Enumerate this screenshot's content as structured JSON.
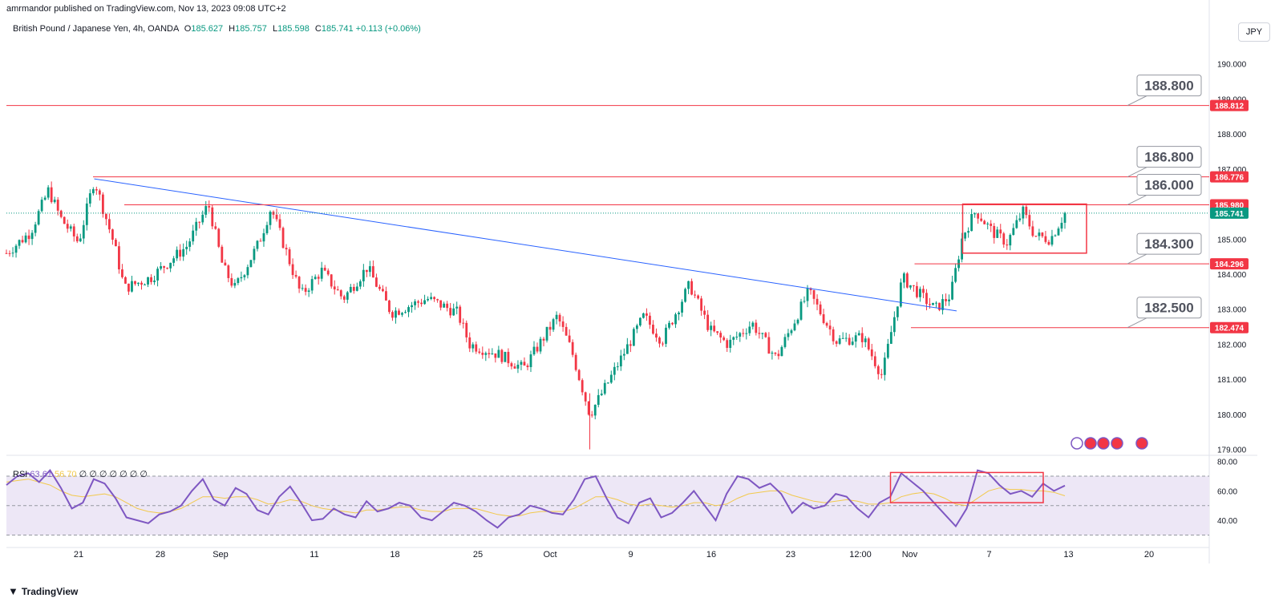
{
  "header": {
    "published_by": "amrmandor published on TradingView.com, Nov 13, 2023 09:08 UTC+2"
  },
  "legend": {
    "symbol": "British Pound / Japanese Yen, 4h, OANDA",
    "o_label": "O",
    "o": "185.627",
    "h_label": "H",
    "h": "185.757",
    "l_label": "L",
    "l": "185.598",
    "c_label": "C",
    "c": "185.741",
    "change": "+0.113 (+0.06%)"
  },
  "currency_button": "JPY",
  "footer": {
    "brand": "TradingView"
  },
  "rsi_legend": {
    "name": "RSI",
    "rsi": "63.61",
    "ma": "56.70",
    "placeholders": "∅ ∅ ∅ ∅ ∅ ∅ ∅"
  },
  "colors": {
    "up": "#089981",
    "down": "#f23645",
    "trend": "#2962ff",
    "level": "#f23645",
    "rsi": "#7e57c2",
    "rsi_ma": "#f2c94c",
    "rsi_band": "#ede7f6",
    "price_line": "#089981"
  },
  "chart_data": [
    {
      "type": "candlestick",
      "title": "British Pound / Japanese Yen, 4h, OANDA",
      "ylim": [
        178.9,
        190.45
      ],
      "y_ticks": [
        "190.000",
        "189.000",
        "188.000",
        "187.000",
        "186.000",
        "185.000",
        "184.000",
        "183.000",
        "182.000",
        "181.000",
        "180.000",
        "179.000"
      ],
      "x_ticks": [
        "21",
        "28",
        "Sep",
        "11",
        "18",
        "25",
        "Oct",
        "9",
        "16",
        "23",
        "12:00",
        "Nov",
        "7",
        "13",
        "20"
      ],
      "x_tick_pos": [
        0.06,
        0.128,
        0.178,
        0.256,
        0.323,
        0.392,
        0.452,
        0.519,
        0.586,
        0.652,
        0.71,
        0.751,
        0.817,
        0.883,
        0.95
      ],
      "key_points": [
        {
          "t": 0.0,
          "p": 184.6
        },
        {
          "t": 0.02,
          "p": 185.2
        },
        {
          "t": 0.035,
          "p": 186.4
        },
        {
          "t": 0.045,
          "p": 185.6
        },
        {
          "t": 0.06,
          "p": 184.9
        },
        {
          "t": 0.073,
          "p": 186.7
        },
        {
          "t": 0.09,
          "p": 184.8
        },
        {
          "t": 0.098,
          "p": 183.6
        },
        {
          "t": 0.12,
          "p": 183.9
        },
        {
          "t": 0.15,
          "p": 184.8
        },
        {
          "t": 0.168,
          "p": 186.0
        },
        {
          "t": 0.18,
          "p": 184.2
        },
        {
          "t": 0.19,
          "p": 183.6
        },
        {
          "t": 0.21,
          "p": 184.9
        },
        {
          "t": 0.22,
          "p": 185.9
        },
        {
          "t": 0.245,
          "p": 183.4
        },
        {
          "t": 0.262,
          "p": 184.1
        },
        {
          "t": 0.28,
          "p": 183.3
        },
        {
          "t": 0.3,
          "p": 184.2
        },
        {
          "t": 0.32,
          "p": 182.9
        },
        {
          "t": 0.35,
          "p": 183.3
        },
        {
          "t": 0.375,
          "p": 182.9
        },
        {
          "t": 0.385,
          "p": 182.0
        },
        {
          "t": 0.41,
          "p": 181.7
        },
        {
          "t": 0.43,
          "p": 181.3
        },
        {
          "t": 0.458,
          "p": 182.8
        },
        {
          "t": 0.47,
          "p": 181.8
        },
        {
          "t": 0.485,
          "p": 180.0
        },
        {
          "t": 0.5,
          "p": 180.9
        },
        {
          "t": 0.53,
          "p": 182.8
        },
        {
          "t": 0.545,
          "p": 182.1
        },
        {
          "t": 0.568,
          "p": 183.7
        },
        {
          "t": 0.585,
          "p": 182.4
        },
        {
          "t": 0.6,
          "p": 182.0
        },
        {
          "t": 0.62,
          "p": 182.6
        },
        {
          "t": 0.64,
          "p": 181.6
        },
        {
          "t": 0.667,
          "p": 183.5
        },
        {
          "t": 0.69,
          "p": 182.1
        },
        {
          "t": 0.712,
          "p": 182.2
        },
        {
          "t": 0.728,
          "p": 181.1
        },
        {
          "t": 0.745,
          "p": 183.9
        },
        {
          "t": 0.76,
          "p": 183.4
        },
        {
          "t": 0.772,
          "p": 183.0
        },
        {
          "t": 0.785,
          "p": 183.4
        },
        {
          "t": 0.795,
          "p": 185.1
        },
        {
          "t": 0.806,
          "p": 185.8
        },
        {
          "t": 0.82,
          "p": 185.2
        },
        {
          "t": 0.832,
          "p": 184.9
        },
        {
          "t": 0.845,
          "p": 185.8
        },
        {
          "t": 0.855,
          "p": 185.1
        },
        {
          "t": 0.868,
          "p": 185.0
        },
        {
          "t": 0.88,
          "p": 185.74
        }
      ],
      "horizontal_levels": [
        {
          "price": 188.812,
          "label": "188.812",
          "x_start": 0.0,
          "callout": "188.800"
        },
        {
          "price": 186.776,
          "label": "186.776",
          "x_start": 0.072,
          "callout": "186.800"
        },
        {
          "price": 185.98,
          "label": "185.980",
          "x_start": 0.098,
          "callout": "186.000"
        },
        {
          "price": 184.296,
          "label": "184.296",
          "x_start": 0.755,
          "callout": "184.300"
        },
        {
          "price": 182.474,
          "label": "182.474",
          "x_start": 0.752,
          "callout": "182.500"
        }
      ],
      "last_price": {
        "price": 185.741,
        "label": "185.741"
      },
      "trendline": {
        "x1": 0.073,
        "p1": 186.72,
        "x2": 0.79,
        "p2": 182.95
      },
      "highlight_box": {
        "t1": 0.795,
        "t2": 0.898,
        "p_top": 186.0,
        "p_bottom": 184.6
      }
    },
    {
      "type": "line",
      "title": "RSI",
      "ylim": [
        27,
        82
      ],
      "y_ticks": [
        "80.00",
        "60.00",
        "40.00"
      ],
      "bands": [
        70,
        50,
        30
      ],
      "rsi_values": [
        64,
        70,
        72,
        66,
        74,
        62,
        48,
        52,
        68,
        65,
        55,
        42,
        40,
        38,
        44,
        46,
        50,
        60,
        68,
        54,
        50,
        62,
        58,
        47,
        44,
        56,
        63,
        52,
        40,
        41,
        48,
        44,
        42,
        53,
        46,
        48,
        52,
        50,
        42,
        40,
        46,
        52,
        50,
        46,
        40,
        35,
        42,
        44,
        50,
        48,
        45,
        44,
        54,
        68,
        70,
        55,
        42,
        38,
        52,
        55,
        42,
        45,
        52,
        60,
        50,
        40,
        58,
        70,
        68,
        62,
        65,
        58,
        45,
        52,
        48,
        50,
        58,
        56,
        48,
        42,
        52,
        56,
        72,
        66,
        60,
        52,
        44,
        36,
        48,
        74,
        72,
        64,
        58,
        60,
        56,
        65,
        60,
        63.6
      ],
      "ma_values": [
        66,
        67,
        68,
        66,
        64,
        60,
        57,
        56,
        57,
        58,
        56,
        52,
        48,
        46,
        45,
        46,
        48,
        52,
        56,
        56,
        55,
        56,
        56,
        54,
        51,
        52,
        54,
        53,
        50,
        48,
        47,
        46,
        45,
        47,
        47,
        48,
        49,
        49,
        47,
        46,
        46,
        48,
        48,
        48,
        46,
        44,
        43,
        43,
        45,
        46,
        46,
        46,
        48,
        52,
        56,
        56,
        54,
        51,
        50,
        51,
        50,
        49,
        50,
        52,
        52,
        50,
        51,
        55,
        58,
        59,
        60,
        60,
        57,
        55,
        53,
        52,
        53,
        54,
        53,
        51,
        51,
        52,
        56,
        58,
        59,
        58,
        55,
        51,
        50,
        55,
        60,
        62,
        61,
        61,
        60,
        60,
        59,
        56.7
      ],
      "highlight_box": {
        "t1": 0.735,
        "t2": 0.862,
        "v_top": 72.5,
        "v_bottom": 52
      }
    }
  ]
}
